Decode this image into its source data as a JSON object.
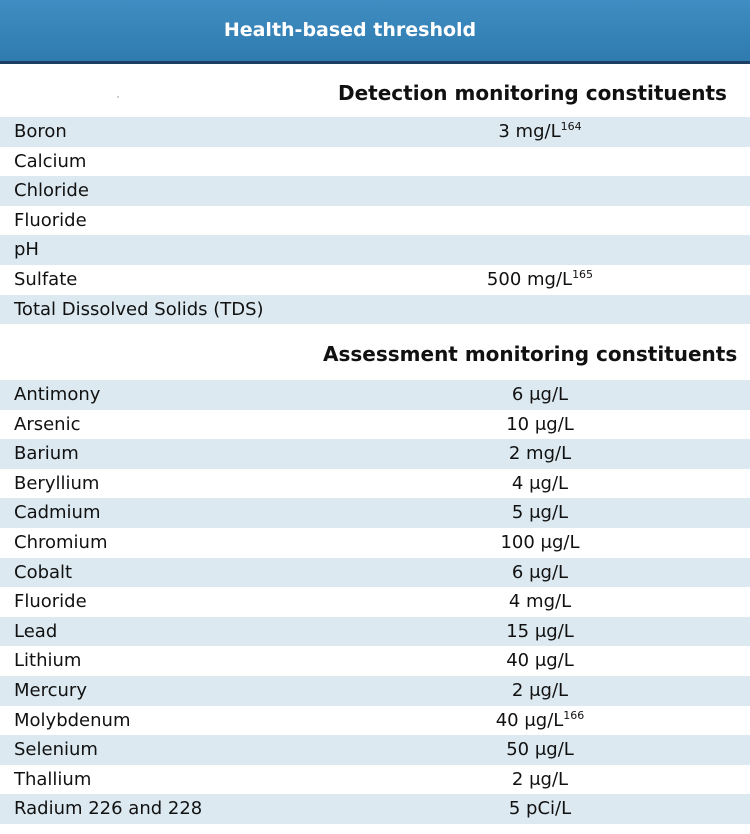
{
  "header": {
    "title": "Health-based threshold"
  },
  "sections": [
    {
      "title": "Detection monitoring constituents",
      "rows": [
        {
          "name": "Boron",
          "value": "3 mg/L",
          "ref": "164"
        },
        {
          "name": "Calcium",
          "value": "",
          "ref": ""
        },
        {
          "name": "Chloride",
          "value": "",
          "ref": ""
        },
        {
          "name": "Fluoride",
          "value": "",
          "ref": ""
        },
        {
          "name": "pH",
          "value": "",
          "ref": ""
        },
        {
          "name": "Sulfate",
          "value": "500 mg/L",
          "ref": "165"
        },
        {
          "name": "Total Dissolved Solids (TDS)",
          "value": "",
          "ref": ""
        }
      ]
    },
    {
      "title": "Assessment monitoring constituents",
      "rows": [
        {
          "name": "Antimony",
          "value": "6 μg/L",
          "ref": ""
        },
        {
          "name": "Arsenic",
          "value": "10 μg/L",
          "ref": ""
        },
        {
          "name": "Barium",
          "value": "2 mg/L",
          "ref": ""
        },
        {
          "name": "Beryllium",
          "value": "4 μg/L",
          "ref": ""
        },
        {
          "name": "Cadmium",
          "value": "5 μg/L",
          "ref": ""
        },
        {
          "name": "Chromium",
          "value": "100 μg/L",
          "ref": ""
        },
        {
          "name": "Cobalt",
          "value": "6 μg/L",
          "ref": ""
        },
        {
          "name": "Fluoride",
          "value": "4 mg/L",
          "ref": ""
        },
        {
          "name": "Lead",
          "value": "15 μg/L",
          "ref": ""
        },
        {
          "name": "Lithium",
          "value": "40 μg/L",
          "ref": ""
        },
        {
          "name": "Mercury",
          "value": "2 μg/L",
          "ref": ""
        },
        {
          "name": "Molybdenum",
          "value": "40 μg/L",
          "ref": "166"
        },
        {
          "name": "Selenium",
          "value": "50 μg/L",
          "ref": ""
        },
        {
          "name": "Thallium",
          "value": "2 μg/L",
          "ref": ""
        },
        {
          "name": "Radium 226 and 228",
          "value": "5 pCi/L",
          "ref": ""
        }
      ]
    }
  ]
}
